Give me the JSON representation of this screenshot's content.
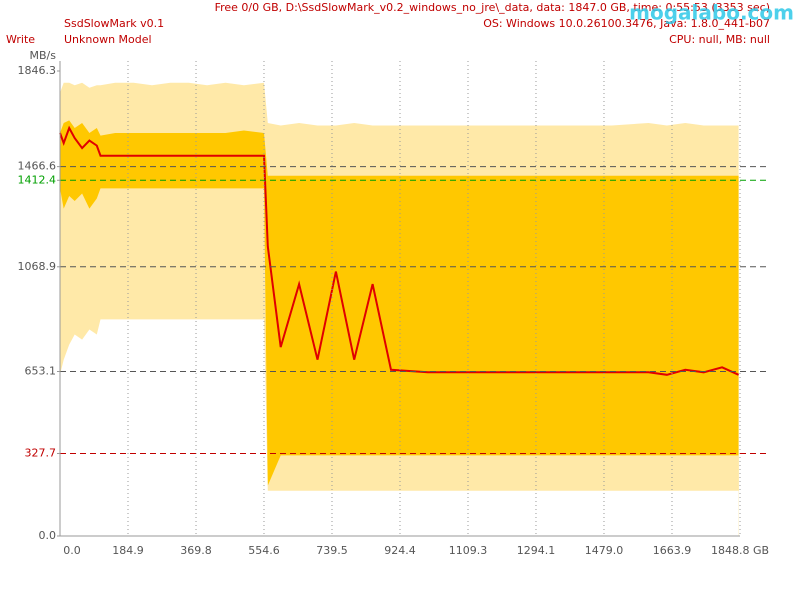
{
  "header": {
    "app": "SsdSlowMark v0.1",
    "mode": "Write",
    "model": "Unknown Model",
    "info": "Free 0/0 GB, D:\\SsdSlowMark_v0.2_windows_no_jre\\_data, data: 1847.0 GB, time: 0:55:53 (3353 sec)",
    "os": "OS: Windows 10.0.26100.3476, Java: 1.8.0_441-b07",
    "hw": "CPU: null, MB: null"
  },
  "watermark": "mogalabo.com",
  "chart_data": {
    "type": "band",
    "ylabel": "MB/s",
    "x": [
      0,
      10,
      25,
      40,
      60,
      80,
      100,
      110,
      150,
      200,
      250,
      300,
      350,
      400,
      450,
      500,
      554.6,
      565,
      600,
      650,
      700,
      750,
      800,
      850,
      900,
      1000,
      1100,
      1200,
      1300,
      1400,
      1500,
      1600,
      1650,
      1700,
      1750,
      1800,
      1845
    ],
    "series": [
      {
        "color": "#ffe9a8",
        "style": "area",
        "values": [
          1760,
          1800,
          1800,
          1790,
          1800,
          1780,
          1790,
          1790,
          1800,
          1800,
          1790,
          1800,
          1800,
          1790,
          1800,
          1790,
          1800,
          1640,
          1630,
          1640,
          1630,
          1630,
          1640,
          1630,
          1630,
          1630,
          1630,
          1630,
          1630,
          1630,
          1630,
          1640,
          1630,
          1640,
          1630,
          1630,
          1630
        ]
      },
      {
        "color": "#ffc800",
        "style": "area",
        "values": [
          1600,
          1640,
          1650,
          1620,
          1640,
          1600,
          1620,
          1590,
          1600,
          1600,
          1600,
          1600,
          1600,
          1600,
          1600,
          1610,
          1600,
          1430,
          1430,
          1430,
          1430,
          1430,
          1430,
          1430,
          1430,
          1430,
          1430,
          1430,
          1430,
          1430,
          1430,
          1430,
          1430,
          1430,
          1430,
          1430,
          1430
        ]
      },
      {
        "color": "#ffe9a8",
        "style": "area",
        "values": [
          1380,
          1300,
          1350,
          1330,
          1360,
          1300,
          1340,
          1380,
          1380,
          1380,
          1380,
          1380,
          1380,
          1380,
          1380,
          1380,
          1380,
          200,
          320,
          320,
          320,
          320,
          320,
          320,
          320,
          320,
          320,
          320,
          320,
          320,
          320,
          320,
          320,
          320,
          320,
          320,
          320
        ]
      },
      {
        "color": "#ffffff",
        "style": "area",
        "values": [
          640,
          700,
          760,
          800,
          780,
          820,
          800,
          860,
          860,
          860,
          860,
          860,
          860,
          860,
          860,
          860,
          860,
          180,
          180,
          180,
          180,
          180,
          180,
          180,
          180,
          180,
          180,
          180,
          180,
          180,
          180,
          180,
          180,
          180,
          180,
          180,
          180
        ]
      },
      {
        "color": "#e00000",
        "style": "line",
        "values": [
          1600,
          1560,
          1620,
          1580,
          1540,
          1570,
          1550,
          1510,
          1510,
          1510,
          1510,
          1510,
          1510,
          1510,
          1510,
          1510,
          1510,
          1150,
          750,
          1000,
          700,
          1050,
          700,
          1000,
          660,
          650,
          650,
          650,
          650,
          650,
          650,
          650,
          640,
          660,
          650,
          670,
          640
        ]
      }
    ],
    "xlim": [
      0,
      1848.8
    ],
    "ylim": [
      0,
      1846.3
    ],
    "xticks": [
      {
        "value": 0,
        "label": "0.0"
      },
      184.9,
      369.8,
      554.6,
      739.5,
      924.4,
      1109.3,
      1294.1,
      {
        "value": 1479,
        "label": "1479.0"
      },
      1663.9,
      {
        "value": 1848.8,
        "label": "1848.8 GB"
      }
    ],
    "yticks": [
      {
        "value": 0,
        "label": "0.0"
      },
      327.7,
      653.1,
      1068.9,
      1412.4,
      1466.6,
      1846.3
    ],
    "ytick_colors": [
      "#555555",
      "#c00000",
      "#555555",
      "#555555",
      "#00a000",
      "#555555",
      "#555555"
    ],
    "hlines": [
      {
        "value": 327.7,
        "color": "#c00000"
      },
      {
        "value": 653.1,
        "color": "#555555"
      },
      {
        "value": 1068.9,
        "color": "#555555"
      },
      {
        "value": 1412.4,
        "color": "#00a000"
      },
      {
        "value": 1466.6,
        "color": "#555555"
      }
    ],
    "grid": true
  }
}
